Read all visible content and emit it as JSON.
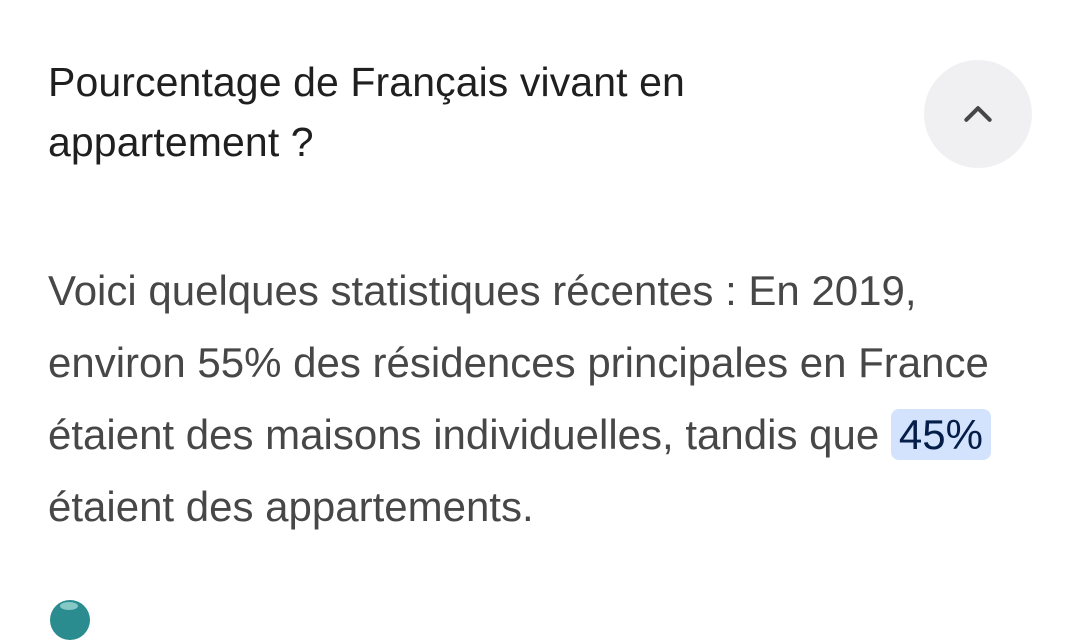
{
  "faq": {
    "question_line1": "Pourcentage de Français vivant en",
    "question_line2": "appartement ?",
    "collapse_icon": "chevron-up-icon",
    "answer": {
      "before": "Voici quelques statistiques récentes : En 2019, environ 55% des résidences principales en France étaient des maisons individuelles, tandis que ",
      "highlight": "45%",
      "after": " étaient des appartements."
    },
    "colors": {
      "question_text": "#1f1f1f",
      "answer_text": "#474747",
      "highlight_background": "#d3e3fd",
      "highlight_text": "#041e49",
      "button_background": "#f0f0f2",
      "icon": "#444746"
    }
  }
}
